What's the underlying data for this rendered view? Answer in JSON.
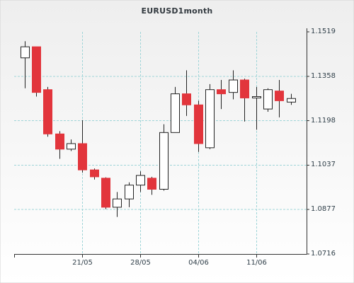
{
  "chart_data": {
    "type": "candlestick",
    "title": "EURUSD1month",
    "xlabel": "",
    "ylabel": "",
    "ylim": [
      1.0716,
      1.1519
    ],
    "y_ticks": [
      "1.1519",
      "1.1358",
      "1.1198",
      "1.1037",
      "1.0877",
      "1.0716"
    ],
    "x_ticks": [
      "21/05",
      "28/05",
      "04/06",
      "11/06"
    ],
    "grid": true,
    "colors": {
      "up_fill": "#ffffff",
      "down_fill": "#e2353c",
      "outline": "#222222",
      "grid": "#9fd5d8",
      "bg_top": "#f0f0f0",
      "bg_bottom": "#ffffff"
    },
    "candles": [
      {
        "date": "14/05",
        "open": 1.1425,
        "high": 1.1485,
        "low": 1.1315,
        "close": 1.1465
      },
      {
        "date": "15/05",
        "open": 1.1465,
        "high": 1.1465,
        "low": 1.1285,
        "close": 1.13
      },
      {
        "date": "16/05",
        "open": 1.131,
        "high": 1.132,
        "low": 1.114,
        "close": 1.115
      },
      {
        "date": "17/05",
        "open": 1.115,
        "high": 1.116,
        "low": 1.106,
        "close": 1.1095
      },
      {
        "date": "18/05",
        "open": 1.1095,
        "high": 1.113,
        "low": 1.1088,
        "close": 1.1115
      },
      {
        "date": "21/05",
        "open": 1.1115,
        "high": 1.12,
        "low": 1.101,
        "close": 1.102
      },
      {
        "date": "22/05",
        "open": 1.102,
        "high": 1.1025,
        "low": 1.0985,
        "close": 1.0995
      },
      {
        "date": "23/05",
        "open": 1.099,
        "high": 1.0993,
        "low": 1.0878,
        "close": 1.0885
      },
      {
        "date": "24/05",
        "open": 1.0885,
        "high": 1.094,
        "low": 1.085,
        "close": 1.0915
      },
      {
        "date": "25/05",
        "open": 1.0915,
        "high": 1.0975,
        "low": 1.0885,
        "close": 1.0965
      },
      {
        "date": "28/05",
        "open": 1.0965,
        "high": 1.1015,
        "low": 1.094,
        "close": 1.1
      },
      {
        "date": "29/05",
        "open": 1.099,
        "high": 1.0995,
        "low": 1.093,
        "close": 1.095
      },
      {
        "date": "30/05",
        "open": 1.095,
        "high": 1.1185,
        "low": 1.0945,
        "close": 1.1155
      },
      {
        "date": "31/05",
        "open": 1.1155,
        "high": 1.132,
        "low": 1.1155,
        "close": 1.1295
      },
      {
        "date": "01/06",
        "open": 1.1295,
        "high": 1.138,
        "low": 1.1215,
        "close": 1.1255
      },
      {
        "date": "04/06",
        "open": 1.1255,
        "high": 1.127,
        "low": 1.1085,
        "close": 1.1115
      },
      {
        "date": "05/06",
        "open": 1.11,
        "high": 1.133,
        "low": 1.1095,
        "close": 1.131
      },
      {
        "date": "06/06",
        "open": 1.131,
        "high": 1.1345,
        "low": 1.124,
        "close": 1.1295
      },
      {
        "date": "07/06",
        "open": 1.13,
        "high": 1.138,
        "low": 1.1275,
        "close": 1.1345
      },
      {
        "date": "08/06",
        "open": 1.1345,
        "high": 1.135,
        "low": 1.1195,
        "close": 1.128
      },
      {
        "date": "11/06",
        "open": 1.128,
        "high": 1.132,
        "low": 1.1165,
        "close": 1.1285
      },
      {
        "date": "12/06",
        "open": 1.124,
        "high": 1.1315,
        "low": 1.123,
        "close": 1.131
      },
      {
        "date": "13/06",
        "open": 1.1305,
        "high": 1.1345,
        "low": 1.121,
        "close": 1.127
      },
      {
        "date": "14/06",
        "open": 1.1265,
        "high": 1.1295,
        "low": 1.1255,
        "close": 1.1278
      }
    ]
  }
}
